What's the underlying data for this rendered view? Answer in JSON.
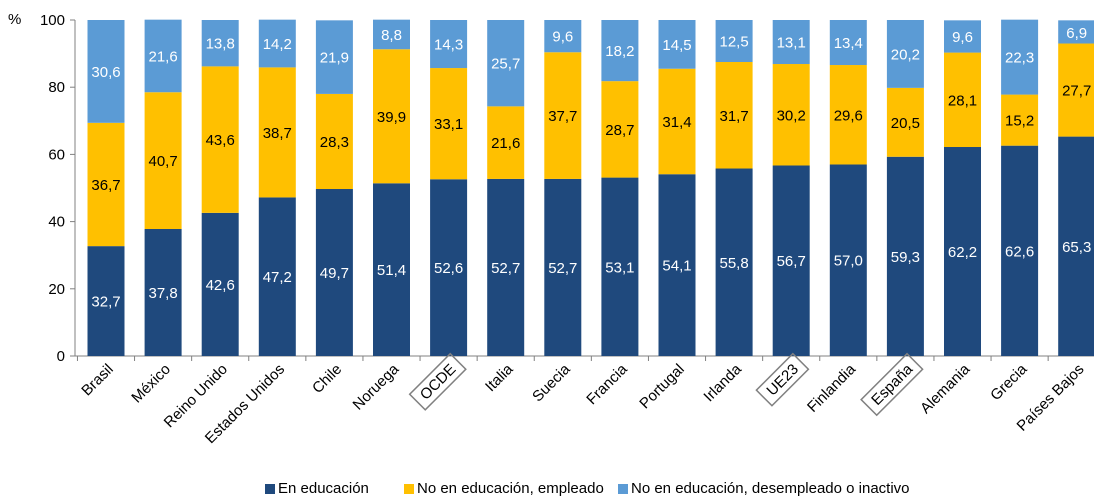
{
  "chart_data": {
    "type": "bar",
    "stacked": true,
    "y_unit_label": "%",
    "ylim": [
      0,
      100
    ],
    "yticks": [
      0,
      20,
      40,
      60,
      80,
      100
    ],
    "grid": false,
    "legend_position": "bottom",
    "categories": [
      "Brasil",
      "México",
      "Reino Unido",
      "Estados Unidos",
      "Chile",
      "Noruega",
      "OCDE",
      "Italia",
      "Suecia",
      "Francia",
      "Portugal",
      "Irlanda",
      "UE23",
      "Finlandia",
      "España",
      "Alemania",
      "Grecia",
      "Países Bajos"
    ],
    "boxed_categories": [
      "OCDE",
      "UE23",
      "España"
    ],
    "series": [
      {
        "name": "En educación",
        "color": "#1F497D",
        "values": [
          32.7,
          37.8,
          42.6,
          47.2,
          49.7,
          51.4,
          52.6,
          52.7,
          52.7,
          53.1,
          54.1,
          55.8,
          56.7,
          57.0,
          59.3,
          62.2,
          62.6,
          65.3
        ],
        "labels": [
          "32,7",
          "37,8",
          "42,6",
          "47,2",
          "49,7",
          "51,4",
          "52,6",
          "52,7",
          "52,7",
          "53,1",
          "54,1",
          "55,8",
          "56,7",
          "57,0",
          "59,3",
          "62,2",
          "62,6",
          "65,3"
        ]
      },
      {
        "name": "No en educación, empleado",
        "color": "#FFC000",
        "values": [
          36.7,
          40.7,
          43.6,
          38.7,
          28.3,
          39.9,
          33.1,
          21.6,
          37.7,
          28.7,
          31.4,
          31.7,
          30.2,
          29.6,
          20.5,
          28.1,
          15.2,
          27.7
        ],
        "labels": [
          "36,7",
          "40,7",
          "43,6",
          "38,7",
          "28,3",
          "39,9",
          "33,1",
          "21,6",
          "37,7",
          "28,7",
          "31,4",
          "31,7",
          "30,2",
          "29,6",
          "20,5",
          "28,1",
          "15,2",
          "27,7"
        ]
      },
      {
        "name": "No en educación, desempleado o inactivo",
        "color": "#5B9BD5",
        "values": [
          30.6,
          21.6,
          13.8,
          14.2,
          21.9,
          8.8,
          14.3,
          25.7,
          9.6,
          18.2,
          14.5,
          12.5,
          13.1,
          13.4,
          20.2,
          9.6,
          22.3,
          6.9
        ],
        "labels": [
          "30,6",
          "21,6",
          "13,8",
          "14,2",
          "21,9",
          "8,8",
          "14,3",
          "25,7",
          "9,6",
          "18,2",
          "14,5",
          "12,5",
          "13,1",
          "13,4",
          "20,2",
          "9,6",
          "22,3",
          "6,9"
        ]
      }
    ]
  }
}
